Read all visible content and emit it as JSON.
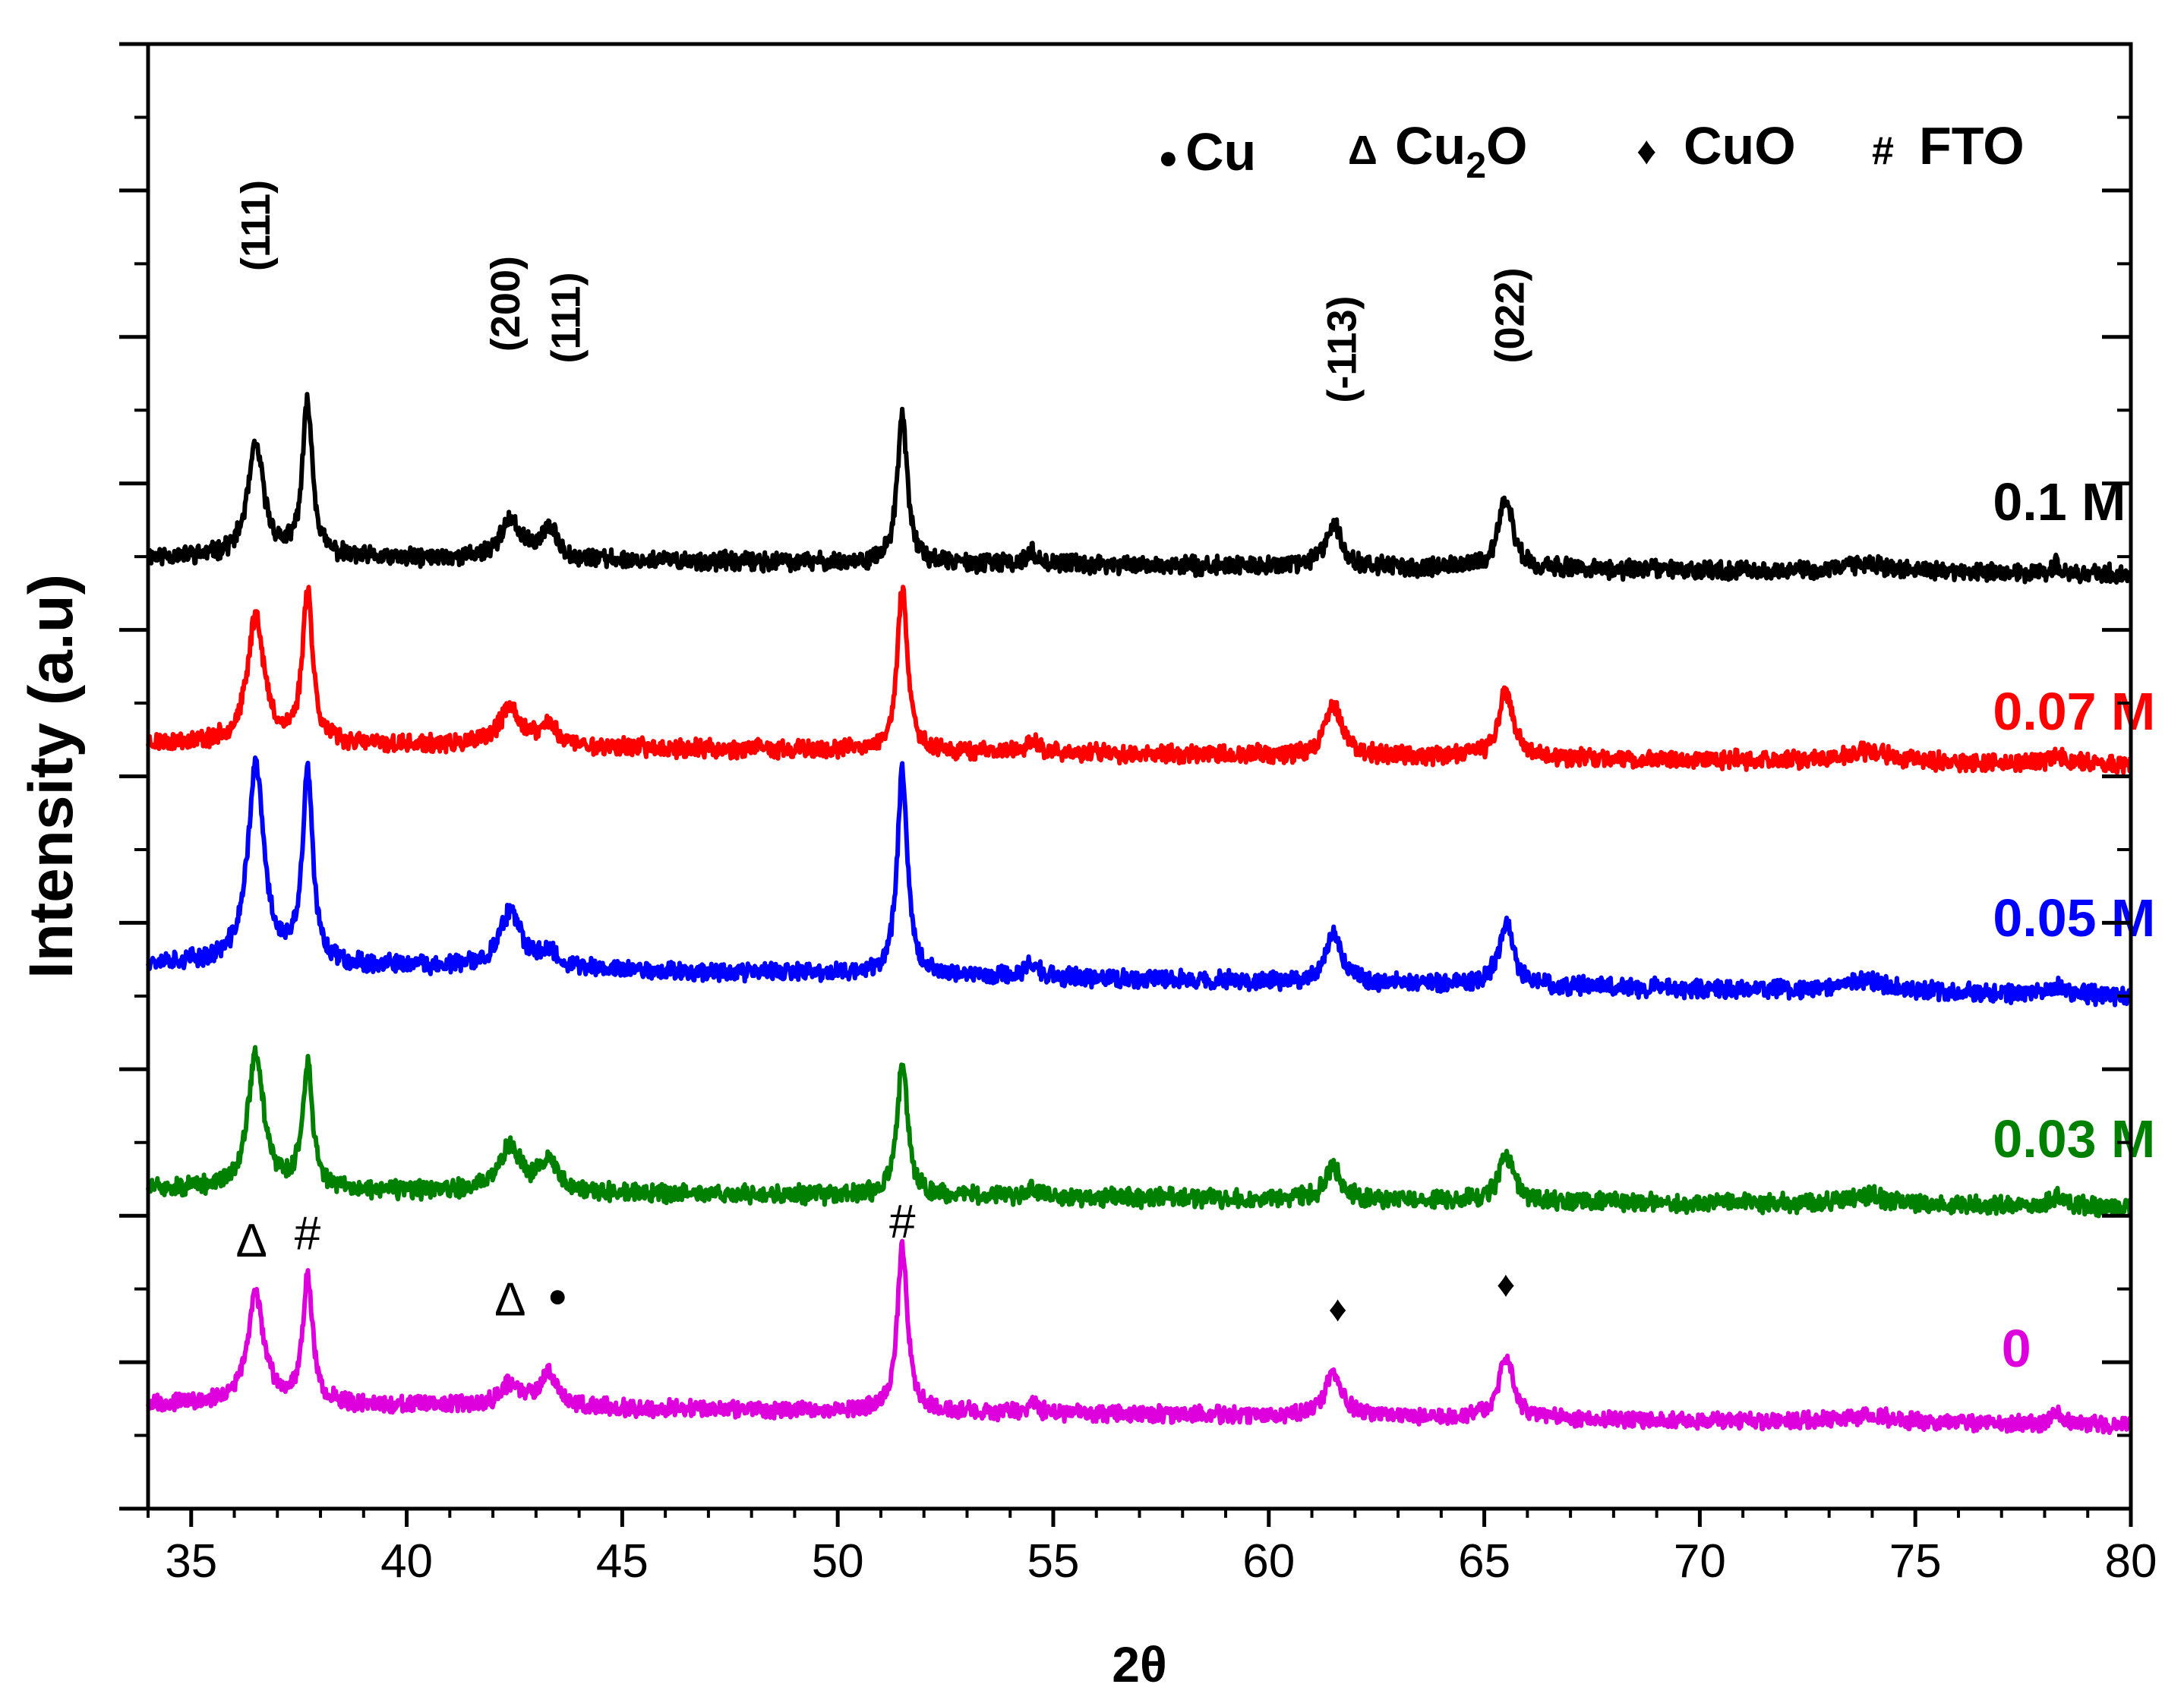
{
  "chart_data": {
    "type": "line",
    "title": "",
    "xlabel": "2θ",
    "ylabel": "Intensity (a.u)",
    "xlim": [
      34,
      80
    ],
    "x_ticks": [
      35,
      40,
      45,
      50,
      55,
      60,
      65,
      70,
      75,
      80
    ],
    "x_tick_labels": [
      "35",
      "40",
      "45",
      "50",
      "55",
      "60",
      "65",
      "70",
      "75",
      "80"
    ],
    "y_units": "relative intensity (stacked offsets, no numeric y labels)",
    "ylim": [
      0,
      100
    ],
    "grid": false,
    "legend": {
      "placement": "top-right",
      "entries": [
        {
          "symbol": "●",
          "name": "Cu",
          "sub": ""
        },
        {
          "symbol": "Δ",
          "name": "Cu",
          "sub": "2",
          "suffix": "O"
        },
        {
          "symbol": "♦",
          "name": "CuO",
          "sub": ""
        },
        {
          "symbol": "#",
          "name": "FTO",
          "sub": ""
        }
      ]
    },
    "peaks": [
      {
        "x": 36.5,
        "width": 0.45,
        "labels": {
          "0": "Δ",
          "top": "(111)"
        }
      },
      {
        "x": 37.7,
        "width": 0.28,
        "labels": {
          "0": "#"
        }
      },
      {
        "x": 42.4,
        "width": 0.6,
        "labels": {
          "0": "Δ",
          "top": "(200)"
        }
      },
      {
        "x": 43.3,
        "width": 0.5,
        "labels": {
          "0": "●",
          "top": "(111)"
        }
      },
      {
        "x": 51.5,
        "width": 0.28,
        "labels": {
          "0": "#"
        }
      },
      {
        "x": 54.5,
        "width": 0.35
      },
      {
        "x": 61.5,
        "width": 0.45,
        "labels": {
          "0": "♦",
          "top": "(-113)"
        }
      },
      {
        "x": 65.5,
        "width": 0.4,
        "labels": {
          "0": "♦",
          "top": "(022)"
        }
      },
      {
        "x": 73.9,
        "width": 1.2
      },
      {
        "x": 78.3,
        "width": 0.35
      }
    ],
    "peak_annotations": [
      {
        "text": "(111)",
        "x": 36.5,
        "y": 84.5,
        "series": "0.1 M"
      },
      {
        "text": "(200)",
        "x": 42.3,
        "y": 79.0,
        "series": "0.1 M"
      },
      {
        "text": "(111)",
        "x": 43.7,
        "y": 78.2,
        "series": "0.1 M"
      },
      {
        "text": "(-113)",
        "x": 61.7,
        "y": 75.5,
        "series": "0.1 M"
      },
      {
        "text": "(022)",
        "x": 65.6,
        "y": 78.2,
        "series": "0.1 M"
      },
      {
        "text": "Δ",
        "x": 36.4,
        "y": 17.2,
        "series": "0"
      },
      {
        "text": "#",
        "x": 37.7,
        "y": 17.7,
        "series": "0"
      },
      {
        "text": "Δ",
        "x": 42.4,
        "y": 13.2,
        "series": "0"
      },
      {
        "text": "●",
        "x": 43.5,
        "y": 13.8,
        "series": "0"
      },
      {
        "text": "#",
        "x": 51.5,
        "y": 18.5,
        "series": "0"
      },
      {
        "text": "♦",
        "x": 61.6,
        "y": 12.8,
        "series": "0"
      },
      {
        "text": "♦",
        "x": 65.5,
        "y": 14.5,
        "series": "0"
      }
    ],
    "series": [
      {
        "name": "0.1 M",
        "label": "0.1 M",
        "color": "#000000",
        "baseline": [
          [
            34.0,
            65.0
          ],
          [
            80.0,
            63.8
          ]
        ],
        "noise": 0.55,
        "seed": 11,
        "peak_heights": [
          7.5,
          10.5,
          2.5,
          2.0,
          10.0,
          0.8,
          3.0,
          4.8,
          0.6,
          0.6
        ],
        "label_x": 76.8,
        "label_y": 67.5
      },
      {
        "name": "0.07 M",
        "label": "0.07 M",
        "color": "#ff0000",
        "baseline": [
          [
            34.0,
            52.3
          ],
          [
            80.0,
            50.8
          ]
        ],
        "noise": 0.55,
        "seed": 23,
        "peak_heights": [
          8.8,
          10.5,
          2.6,
          1.4,
          11.0,
          0.8,
          3.6,
          4.5,
          0.7,
          0.6
        ],
        "label_x": 76.8,
        "label_y": 53.2
      },
      {
        "name": "0.05 M",
        "label": "0.05 M",
        "color": "#0000ff",
        "baseline": [
          [
            34.0,
            37.3
          ],
          [
            80.0,
            35.0
          ]
        ],
        "noise": 0.55,
        "seed": 37,
        "peak_heights": [
          13.5,
          13.0,
          3.8,
          1.1,
          14.2,
          1.0,
          3.2,
          4.2,
          0.7,
          0.6
        ],
        "label_x": 76.8,
        "label_y": 39.1
      },
      {
        "name": "0.03 M",
        "label": "0.03 M",
        "color": "#008000",
        "baseline": [
          [
            34.0,
            21.8
          ],
          [
            80.0,
            20.6
          ]
        ],
        "noise": 0.55,
        "seed": 51,
        "peak_heights": [
          9.2,
          8.5,
          3.2,
          2.1,
          9.3,
          0.6,
          2.2,
          3.1,
          0.6,
          0.6
        ],
        "label_x": 76.8,
        "label_y": 24.0
      },
      {
        "name": "0",
        "label": "0",
        "color": "#dd00dd",
        "baseline": [
          [
            34.0,
            7.2
          ],
          [
            80.0,
            5.7
          ]
        ],
        "noise": 0.5,
        "seed": 67,
        "peak_heights": [
          7.5,
          8.6,
          1.5,
          2.3,
          11.3,
          0.6,
          3.0,
          4.2,
          0.5,
          0.6
        ],
        "label_x": 77.0,
        "label_y": 9.7
      }
    ]
  }
}
